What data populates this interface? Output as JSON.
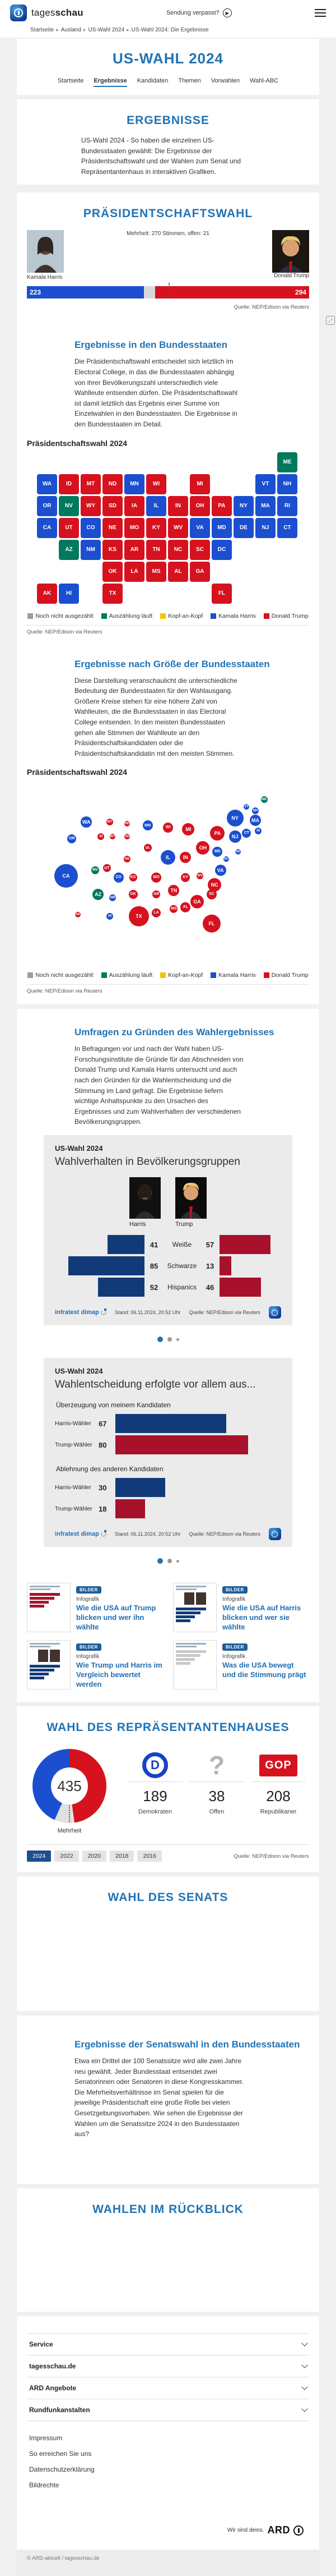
{
  "header": {
    "brand": "tagesschau",
    "missed_label": "Sendung verpasst?"
  },
  "breadcrumb": [
    "Startseite",
    "Ausland",
    "US-Wahl 2024",
    "US-Wahl 2024: Die Ergebnisse"
  ],
  "page": {
    "title": "US-WAHL 2024",
    "tabs": [
      {
        "label": "Startseite",
        "active": false
      },
      {
        "label": "Ergebnisse",
        "active": true
      },
      {
        "label": "Kandidaten",
        "active": false
      },
      {
        "label": "Themen",
        "active": false
      },
      {
        "label": "Vorwahlen",
        "active": false
      },
      {
        "label": "Wahl-ABC",
        "active": false
      }
    ]
  },
  "intro": {
    "heading": "ERGEBNISSE",
    "text": "US-Wahl 2024 - So haben die einzelnen US-Bundesstaaten gewählt: Die Ergebnisse der Präsidentschaftswahl und der Wahlen zum Senat und Repräsentantenhaus in interaktiven Grafiken."
  },
  "president": {
    "heading": "PRÄSIDENTSCHAFTSWAHL",
    "majority_note": "Mehrheit: 270 Stimmen, offen: 21",
    "harris_name": "Kamala Harris",
    "trump_name": "Donald Trump",
    "harris_votes": 223,
    "trump_votes": 294,
    "open_votes": 21,
    "total": 538,
    "majority": 270,
    "source": "Quelle: NEP/Edison via Reuters"
  },
  "states_section": {
    "heading": "Ergebnisse in den Bundesstaaten",
    "text": "Die Präsidentschaftswahl entscheidet sich letztlich im Electoral College, in das die Bundesstaaten abhängig von ihrer Bevölkerungszahl unterschiedlich viele Wahlleute entsenden dürfen. Die Präsidentschaftswahl ist damit letztlich das Ergebnis einer Summe von Einzelwahlen in den Bundesstaaten. Die Ergebnisse in den Bundesstaaten im Detail.",
    "chart_title": "Präsidentschaftswahl 2024",
    "source": "Quelle: NEP/Edison via Reuters"
  },
  "size_section": {
    "heading": "Ergebnisse nach Größe der Bundesstaaten",
    "text": "Diese Darstellung veranschaulicht die unterschiedliche Bedeutung der Bundesstaaten für den Wahlausgang. Größere Kreise stehen für eine höhere Zahl von Wahlleuten, die die Bundesstaaten in das Electoral College entsenden. In den meisten Bundesstaaten gehen alle Stimmen der Wahlleute an den Präsidentschaftskandidaten oder die Präsidentschaftskandidatin mit den meisten Stimmen.",
    "chart_title": "Präsidentschaftswahl 2024",
    "source": "Quelle: NEP/Edison via Reuters"
  },
  "survey_section": {
    "heading": "Umfragen zu Gründen des Wahlergebnisses",
    "text": "In Befragungen vor und nach der Wahl haben US-Forschungsinstitute die Gründe für das Abschneiden von Donald Trump und Kamala Harris untersucht und auch nach den Gründen für die Wahlentscheidung und die Stimmung im Land gefragt. Die Ergebnisse liefern wichtige Anhaltspunkte zu den Ursachen des Ergebnisses und zum Wahlverhalten der verschiedenen Bevölkerungsgruppen."
  },
  "legend": [
    {
      "label": "Noch nicht ausgezählt",
      "color": "#9c9c9c"
    },
    {
      "label": "Auszählung läuft",
      "color": "#00795f"
    },
    {
      "label": "Kopf-an-Kopf",
      "color": "#f2c500"
    },
    {
      "label": "Kamala Harris",
      "color": "#1b4fd0"
    },
    {
      "label": "Donald Trump",
      "color": "#d6121f"
    }
  ],
  "colors": {
    "harris": "#1b4fd0",
    "trump": "#d6121f",
    "counting": "#00795f",
    "tie": "#f2c500",
    "uncounted": "#9c9c9c",
    "open_gray": "#d9d9d9",
    "chart_blue": "#133a78",
    "chart_red": "#a8112b",
    "accent": "#2173b4"
  },
  "electoral_states": [
    {
      "abbr": "AK",
      "ev": 3,
      "result": "trump"
    },
    {
      "abbr": "AL",
      "ev": 9,
      "result": "trump"
    },
    {
      "abbr": "AR",
      "ev": 6,
      "result": "trump"
    },
    {
      "abbr": "AZ",
      "ev": 11,
      "result": "counting"
    },
    {
      "abbr": "CA",
      "ev": 54,
      "result": "harris"
    },
    {
      "abbr": "CO",
      "ev": 10,
      "result": "harris"
    },
    {
      "abbr": "CT",
      "ev": 7,
      "result": "harris"
    },
    {
      "abbr": "DC",
      "ev": 3,
      "result": "harris"
    },
    {
      "abbr": "DE",
      "ev": 3,
      "result": "harris"
    },
    {
      "abbr": "FL",
      "ev": 30,
      "result": "trump"
    },
    {
      "abbr": "GA",
      "ev": 16,
      "result": "trump"
    },
    {
      "abbr": "HI",
      "ev": 4,
      "result": "harris"
    },
    {
      "abbr": "IA",
      "ev": 6,
      "result": "trump"
    },
    {
      "abbr": "ID",
      "ev": 4,
      "result": "trump"
    },
    {
      "abbr": "IL",
      "ev": 19,
      "result": "harris"
    },
    {
      "abbr": "IN",
      "ev": 11,
      "result": "trump"
    },
    {
      "abbr": "KS",
      "ev": 6,
      "result": "trump"
    },
    {
      "abbr": "KY",
      "ev": 8,
      "result": "trump"
    },
    {
      "abbr": "LA",
      "ev": 8,
      "result": "trump"
    },
    {
      "abbr": "MA",
      "ev": 11,
      "result": "harris"
    },
    {
      "abbr": "MD",
      "ev": 10,
      "result": "harris"
    },
    {
      "abbr": "ME",
      "ev": 4,
      "result": "counting"
    },
    {
      "abbr": "MI",
      "ev": 15,
      "result": "trump"
    },
    {
      "abbr": "MN",
      "ev": 10,
      "result": "harris"
    },
    {
      "abbr": "MO",
      "ev": 10,
      "result": "trump"
    },
    {
      "abbr": "MS",
      "ev": 6,
      "result": "trump"
    },
    {
      "abbr": "MT",
      "ev": 4,
      "result": "trump"
    },
    {
      "abbr": "NC",
      "ev": 16,
      "result": "trump"
    },
    {
      "abbr": "ND",
      "ev": 3,
      "result": "trump"
    },
    {
      "abbr": "NE",
      "ev": 5,
      "result": "trump"
    },
    {
      "abbr": "NH",
      "ev": 4,
      "result": "harris"
    },
    {
      "abbr": "NJ",
      "ev": 14,
      "result": "harris"
    },
    {
      "abbr": "NM",
      "ev": 5,
      "result": "harris"
    },
    {
      "abbr": "NV",
      "ev": 6,
      "result": "counting"
    },
    {
      "abbr": "NY",
      "ev": 28,
      "result": "harris"
    },
    {
      "abbr": "OH",
      "ev": 17,
      "result": "trump"
    },
    {
      "abbr": "OK",
      "ev": 7,
      "result": "trump"
    },
    {
      "abbr": "OR",
      "ev": 8,
      "result": "harris"
    },
    {
      "abbr": "PA",
      "ev": 19,
      "result": "trump"
    },
    {
      "abbr": "RI",
      "ev": 4,
      "result": "harris"
    },
    {
      "abbr": "SC",
      "ev": 9,
      "result": "trump"
    },
    {
      "abbr": "SD",
      "ev": 3,
      "result": "trump"
    },
    {
      "abbr": "TN",
      "ev": 11,
      "result": "trump"
    },
    {
      "abbr": "TX",
      "ev": 40,
      "result": "trump"
    },
    {
      "abbr": "UT",
      "ev": 6,
      "result": "trump"
    },
    {
      "abbr": "VA",
      "ev": 13,
      "result": "harris"
    },
    {
      "abbr": "VT",
      "ev": 3,
      "result": "harris"
    },
    {
      "abbr": "WA",
      "ev": 12,
      "result": "harris"
    },
    {
      "abbr": "WI",
      "ev": 10,
      "result": "trump"
    },
    {
      "abbr": "WV",
      "ev": 4,
      "result": "trump"
    },
    {
      "abbr": "WY",
      "ev": 3,
      "result": "trump"
    }
  ],
  "demographics_chart": {
    "kicker": "US-Wahl 2024",
    "title": "Wahlverhalten in Bevölkerungsgruppen",
    "harris_label": "Harris",
    "trump_label": "Trump",
    "categories": [
      "Weiße",
      "Schwarze",
      "Hispanics"
    ],
    "harris_values": [
      41,
      85,
      52
    ],
    "trump_values": [
      57,
      13,
      46
    ],
    "brand": "infratest dimap",
    "stand": "Stand:  06.11.2024, 20:52 Uhr",
    "source": "Quelle: NEP/Edison via Reuters"
  },
  "decision_chart": {
    "kicker": "US-Wahl 2024",
    "title": "Wahlentscheidung erfolgte vor allem aus...",
    "groups": [
      {
        "heading": "Überzeugung von meinem Kandidaten",
        "rows": [
          {
            "label": "Harris-Wähler",
            "value": 67,
            "color": "chart_blue"
          },
          {
            "label": "Trump-Wähler",
            "value": 80,
            "color": "chart_red"
          }
        ]
      },
      {
        "heading": "Ablehnung des anderen Kandidaten",
        "rows": [
          {
            "label": "Harris-Wähler",
            "value": 30,
            "color": "chart_blue"
          },
          {
            "label": "Trump-Wähler",
            "value": 18,
            "color": "chart_red"
          }
        ]
      }
    ],
    "brand": "infratest dimap",
    "stand": "Stand:  06.11.2024, 20:52 Uhr",
    "source": "Quelle: NEP/Edison via Reuters"
  },
  "teasers": [
    {
      "badge": "BILDER",
      "type": "Infografik",
      "title": "Wie die USA auf Trump blicken und wer ihn wählte",
      "thumb_style": "red-bars"
    },
    {
      "badge": "BILDER",
      "type": "Infografik",
      "title": "Wie die USA auf Harris blicken und wer sie wählte",
      "thumb_style": "compare"
    },
    {
      "badge": "BILDER",
      "type": "Infografik",
      "title": "Wie Trump und Harris im Vergleich bewertet werden",
      "thumb_style": "photos"
    },
    {
      "badge": "BILDER",
      "type": "Infografik",
      "title": "Was die USA bewegt und die Stimmung prägt",
      "thumb_style": "gray-bars"
    }
  ],
  "house": {
    "heading": "WAHL DES REPRÄSENTANTENHAUSES",
    "total": 435,
    "donut_label": "Mehrheit",
    "stats": [
      {
        "icon": "dnc-logo",
        "value": 189,
        "label": "Demokraten"
      },
      {
        "icon": "question-mark",
        "value": 38,
        "label": "Offen"
      },
      {
        "icon": "gop-logo",
        "value": 208,
        "label": "Republikaner"
      }
    ],
    "years": [
      "2024",
      "2022",
      "2020",
      "2018",
      "2016"
    ],
    "active_year": "2024",
    "source": "Quelle: NEP/Edison via Reuters"
  },
  "senate": {
    "heading": "WAHL DES SENATS"
  },
  "senate_states": {
    "heading": "Ergebnisse der Senatswahl in den Bundesstaaten",
    "text": "Etwa ein Drittel der 100 Senatssitze wird alle zwei Jahre neu gewählt. Jeder Bundesstaat entsendet zwei Senatorinnen oder Senatoren in diese Kongresskammer. Die Mehrheitsverhältnisse im Senat spielen für die jeweilige Präsidentschaft eine große Rolle bei vielen Gesetzgebungsvorhaben. Wie sehen die Ergebnisse der Wahlen um die Senatssitze 2024 in den Bundesstaaten aus?"
  },
  "retrospect": {
    "heading": "WAHLEN IM RÜCKBLICK"
  },
  "footer": {
    "accordions": [
      "Service",
      "tagesschau.de",
      "ARD Angebote",
      "Rundfunkanstalten"
    ],
    "links": [
      "Impressum",
      "So erreichen Sie uns",
      "Datenschutzerklärung",
      "Bildrechte"
    ],
    "ard_tagline": "Wir sind deins.",
    "ard_brand": "ARD",
    "copyright": "© ARD-aktuell / tagesschau.de"
  },
  "chart_data": [
    {
      "type": "heatmap",
      "subtype": "choropleth-us-map",
      "title": "Präsidentschaftswahl 2024",
      "legend": [
        "Noch nicht ausgezählt",
        "Auszählung läuft",
        "Kopf-an-Kopf",
        "Kamala Harris",
        "Donald Trump"
      ],
      "data_key": "electoral_states",
      "source": "Quelle: NEP/Edison via Reuters"
    },
    {
      "type": "scatter",
      "subtype": "bubble-us-map-sized-by-electoral-votes",
      "title": "Präsidentschaftswahl 2024",
      "legend": [
        "Noch nicht ausgezählt",
        "Auszählung läuft",
        "Kopf-an-Kopf",
        "Kamala Harris",
        "Donald Trump"
      ],
      "data_key": "electoral_states",
      "source": "Quelle: NEP/Edison via Reuters"
    },
    {
      "type": "bar",
      "title": "Wahlverhalten in Bevölkerungsgruppen",
      "categories": [
        "Weiße",
        "Schwarze",
        "Hispanics"
      ],
      "series": [
        {
          "name": "Harris",
          "values": [
            41,
            85,
            52
          ]
        },
        {
          "name": "Trump",
          "values": [
            57,
            13,
            46
          ]
        }
      ],
      "xlim": [
        0,
        100
      ]
    },
    {
      "type": "bar",
      "title": "Wahlentscheidung erfolgte vor allem aus...",
      "categories": [
        "Überzeugung von meinem Kandidaten — Harris-Wähler",
        "Überzeugung von meinem Kandidaten — Trump-Wähler",
        "Ablehnung des anderen Kandidaten — Harris-Wähler",
        "Ablehnung des anderen Kandidaten — Trump-Wähler"
      ],
      "values": [
        67,
        80,
        30,
        18
      ],
      "xlim": [
        0,
        100
      ]
    },
    {
      "type": "pie",
      "subtype": "donut",
      "title": "Wahl des Repräsentantenhauses",
      "categories": [
        "Demokraten",
        "Offen",
        "Republikaner"
      ],
      "values": [
        189,
        38,
        208
      ],
      "total": 435,
      "annotation": "Mehrheit"
    },
    {
      "type": "bar",
      "subtype": "head-to-head-electoral-bar",
      "title": "Präsidentschaftswahl",
      "categories": [
        "Kamala Harris",
        "offen",
        "Donald Trump"
      ],
      "values": [
        223,
        21,
        294
      ],
      "total": 538,
      "majority": 270
    }
  ]
}
